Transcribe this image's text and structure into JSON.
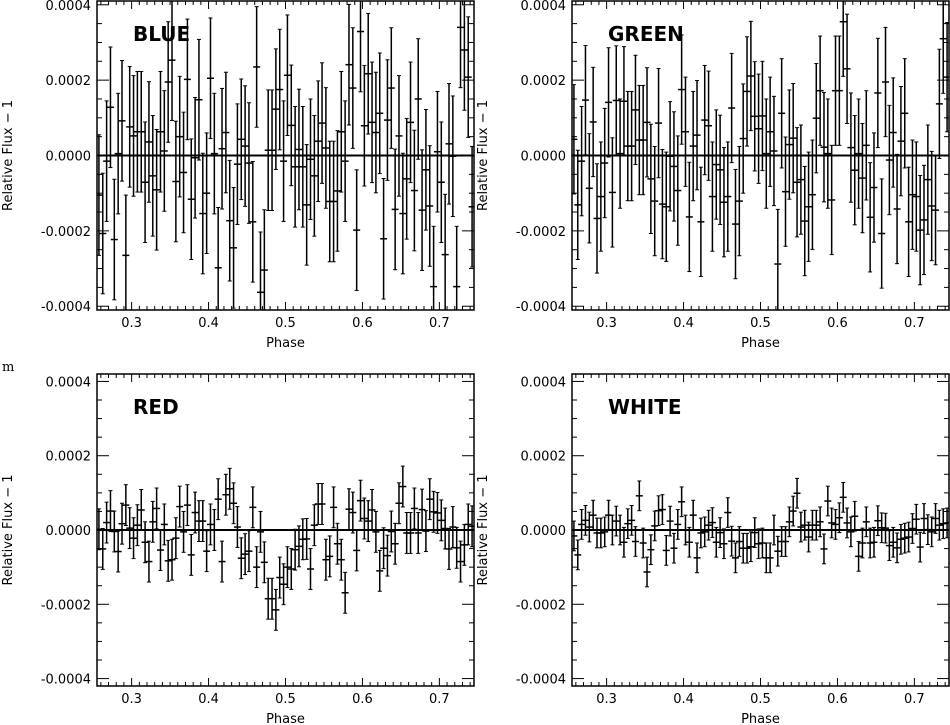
{
  "stray_text": "m",
  "chart_data": [
    {
      "type": "scatter",
      "title": "BLUE",
      "xlabel": "Phase",
      "ylabel": "Relative Flux − 1",
      "xlim": [
        0.255,
        0.745
      ],
      "ylim": [
        -0.00041,
        0.00041
      ],
      "xticks": [
        "0.3",
        "0.4",
        "0.5",
        "0.6",
        "0.7"
      ],
      "yticks": [
        "-0.0004",
        "-0.0002",
        "0.0000",
        "0.0002",
        "0.0004"
      ],
      "reference_line": 0,
      "yerr": 0.00016,
      "y": [
        -0.000105,
        -0.000207,
        -1.5e-05,
        0.000128,
        -0.000223,
        5e-06,
        9.2e-05,
        -0.000265,
        7.6e-05,
        5.2e-05,
        6.3e-05,
        6.3e-05,
        -7.1e-05,
        3.6e-05,
        -5.4e-05,
        -9.1e-05,
        6.3e-05,
        1.2e-05,
        0.000195,
        0.000253,
        -6.9e-05,
        5e-05,
        -4.5e-05,
        0.000202,
        -0.000116,
        -6e-06,
        0.000148,
        -0.000154,
        -0.0001,
        0.000205,
        5e-06,
        -0.000298,
        1.8e-05,
        6.1e-05,
        -0.000173,
        -0.000245,
        -2.3e-05,
        4.3e-05,
        2.5e-05,
        -2e-05,
        -0.000176,
        0.000235,
        -0.000363,
        -0.000304,
        1.4e-05,
        1.4e-05,
        0.000123,
        0.000175,
        -1.5e-05,
        0.000213,
        8e-05,
        -3e-05,
        1.6e-05,
        -3e-05,
        -0.000131,
        -1e-05,
        -5.4e-05,
        3.8e-05,
        8.6e-05,
        2e-05,
        -0.000122,
        -0.000122,
        -9.4e-05,
        6.3e-05,
        -1.5e-05,
        0.000241,
        0.000179,
        -0.000198,
        0.000329,
        7.9e-05,
        0.000217,
        8.8e-05,
        6.1e-05,
        0.000112,
        -0.000221,
        9.4e-05,
        0.000179,
        -0.000143,
        5.2e-05,
        -0.000154,
        -6.2e-05,
        8.8e-05,
        -9.3e-05,
        0.00015,
        -0.000145,
        -3.8e-05,
        -0.000134,
        -0.000348,
        1e-05,
        -7.1e-05,
        -0.000263,
        3.1e-05,
        -2e-06,
        -0.000348,
        0.00034,
        0.00028,
        0.000208,
        -0.000136
      ]
    },
    {
      "type": "scatter",
      "title": "GREEN",
      "xlabel": "Phase",
      "ylabel": "Relative Flux − 1",
      "xlim": [
        0.255,
        0.745
      ],
      "ylim": [
        -0.00041,
        0.00041
      ],
      "xticks": [
        "0.3",
        "0.4",
        "0.5",
        "0.6",
        "0.7"
      ],
      "yticks": [
        "-0.0004",
        "-0.0002",
        "0.0000",
        "0.0002",
        "0.0004"
      ],
      "reference_line": 0,
      "yerr": 0.000145,
      "y": [
        4.3e-05,
        -0.000131,
        -1.5e-05,
        0.000147,
        -8.7e-05,
        8.9e-05,
        -0.000167,
        -0.000109,
        -2e-05,
        0.000141,
        -9.8e-05,
        0.000146,
        5e-06,
        0.000144,
        2.5e-05,
        2.5e-05,
        0.000121,
        4.1e-05,
        4.1e-05,
        8.8e-05,
        -6.2e-05,
        -0.000121,
        8.6e-05,
        -0.000129,
        -0.000136,
        -2e-06,
        -2.9e-05,
        -9.3e-05,
        0.000175,
        6.3e-05,
        -0.000163,
        2.5e-05,
        5.4e-05,
        -0.000176,
        9.4e-05,
        7.9e-05,
        -0.000109,
        -2.4e-05,
        -3.8e-05,
        -0.000124,
        -0.000109,
        0.000126,
        -0.000182,
        -0.000121,
        4.5e-05,
        0.00017,
        0.000211,
        0.000104,
        7.1e-05,
        0.000105,
        5e-06,
        6.3e-05,
        1.2e-05,
        -0.000288,
        0.000112,
        -9.6e-05,
        2.9e-05,
        4.6e-05,
        -7.1e-05,
        -6.4e-05,
        -0.000174,
        -0.000136,
        -0.000104,
        9.9e-05,
        0.000172,
        2.2e-05,
        5e-06,
        -0.000118,
        0.000172,
        0.000172,
        0.000355,
        0.00023,
        2.1e-05,
        -3.9e-05,
        5e-06,
        -6e-05,
        2.7e-05,
        -0.000164,
        -8.5e-05,
        0.000166,
        -0.000207,
        0.000195,
        -1.2e-05,
        6.1e-05,
        -0.000142,
        3.8e-05,
        0.000112,
        -0.000176,
        -0.000104,
        -0.000109,
        -0.000198,
        -0.000171,
        -6.4e-05,
        -0.000134,
        -0.000145,
        0.000137,
        0.00031,
        0.000208
      ]
    },
    {
      "type": "scatter",
      "title": "RED",
      "xlabel": "Phase",
      "ylabel": "Relative Flux − 1",
      "xlim": [
        0.255,
        0.745
      ],
      "ylim": [
        -0.00042,
        0.00042
      ],
      "xticks": [
        "0.3",
        "0.4",
        "0.5",
        "0.6",
        "0.7"
      ],
      "yticks": [
        "-0.0004",
        "-0.0002",
        "0.0000",
        "0.0002",
        "0.0004"
      ],
      "reference_line": 0,
      "yerr": 5.5e-05,
      "y": [
        2e-06,
        -5.1e-05,
        2e-05,
        5.1e-05,
        -4e-06,
        -5.8e-05,
        1.7e-05,
        6.7e-05,
        5e-06,
        -2.2e-05,
        1.3e-05,
        5.4e-05,
        -3.3e-05,
        -8.5e-05,
        2.2e-05,
        5.8e-05,
        -5.4e-05,
        1.5e-05,
        -8.3e-05,
        -8e-05,
        -2.2e-05,
        6.3e-05,
        -5e-06,
        6.7e-05,
        -6.7e-05,
        4.7e-05,
        2.4e-05,
        2.4e-05,
        -5.7e-05,
        1.5e-05,
        0,
        8.3e-05,
        -8.5e-05,
        9.5e-05,
        0.000111,
        7.2e-05,
        8e-06,
        -7.6e-05,
        -6.5e-05,
        -5.7e-05,
        6.1e-05,
        -0.0001,
        -5e-06,
        -8.7e-05,
        -0.000185,
        -0.000185,
        -0.000215,
        -0.000128,
        -0.000146,
        -0.0001,
        -0.000105,
        -5.3e-05,
        -4.4e-05,
        -2.5e-05,
        -2.4e-05,
        -0.000105,
        1.3e-05,
        7e-05,
        7e-05,
        -8e-05,
        -7.1e-05,
        6.1e-05,
        -3.7e-05,
        -8e-05,
        -0.000169,
        5.6e-05,
        4.7e-05,
        -5.5e-05,
        7.9e-05,
        3.1e-05,
        2.4e-05,
        5.4e-05,
        -5e-06,
        -0.00011,
        -4.9e-05,
        -6.9e-05,
        -4e-06,
        -3.7e-05,
        7.2e-05,
        0.000117,
        -8e-06,
        -8e-06,
        5.8e-05,
        -8e-06,
        5.5e-05,
        -3e-06,
        8.3e-05,
        4.9e-05,
        4.6e-05,
        2.6e-05,
        4e-06,
        -5.1e-05,
        8e-06,
        -4.8e-05,
        -8.5e-05,
        -4e-05,
        1.5e-05,
        1e-05
      ]
    },
    {
      "type": "scatter",
      "title": "WHITE",
      "xlabel": "Phase",
      "ylabel": "Relative Flux − 1",
      "xlim": [
        0.255,
        0.745
      ],
      "ylim": [
        -0.00042,
        0.00042
      ],
      "xticks": [
        "0.3",
        "0.4",
        "0.5",
        "0.6",
        "0.7"
      ],
      "yticks": [
        "-0.0004",
        "-0.0002",
        "0.0000",
        "0.0002",
        "0.0004"
      ],
      "reference_line": 0,
      "yerr": 4e-05,
      "y": [
        -1.6e-05,
        -6.7e-05,
        1.5e-05,
        2.6e-05,
        8e-06,
        4e-05,
        -8e-06,
        -8e-06,
        -5e-06,
        4e-05,
        0,
        2.4e-05,
        0,
        -3.3e-05,
        1.7e-05,
        2.6e-05,
        -3.1e-05,
        9.2e-05,
        -3.5e-05,
        -0.000113,
        -5.3e-05,
        1.1e-05,
        5.2e-05,
        5.5e-05,
        -5.5e-05,
        2.4e-05,
        -4.9e-05,
        1.5e-05,
        7.6e-05,
        0,
        -3.3e-05,
        4e-05,
        -7.5e-05,
        -8e-06,
        -5e-06,
        1.3e-05,
        2e-05,
        -3.3e-05,
        -7e-06,
        -3.7e-05,
        4.7e-05,
        -3e-05,
        -7.5e-05,
        -3.1e-05,
        -4.9e-05,
        -4.9e-05,
        -4.5e-05,
        -7e-06,
        -3.7e-05,
        -3.5e-05,
        -7.5e-05,
        -7.5e-05,
        0,
        -5.7e-05,
        -3.1e-05,
        -3.1e-05,
        2.2e-05,
        5.1e-05,
        9.9e-05,
        8e-06,
        1.3e-05,
        -1.9e-05,
        1.3e-05,
        1.3e-05,
        2.2e-05,
        -5.1e-05,
        7.8e-05,
        1.9e-05,
        1.5e-05,
        3.3e-05,
        8.8e-05,
        1.9e-05,
        -5e-06,
        3.7e-05,
        -7.1e-05,
        -3.5e-05,
        2.2e-05,
        -3.5e-05,
        -3.3e-05,
        2.5e-05,
        6e-06,
        5e-06,
        -4.2e-05,
        -3.3e-05,
        -4.8e-05,
        -2.5e-05,
        -2.2e-05,
        -1.9e-05,
        4e-06,
        2.9e-05,
        -4.6e-05,
        3.1e-05,
        1e-06,
        -5e-06,
        3.1e-05,
        1.3e-05,
        1.7e-05,
        1.9e-05
      ]
    }
  ],
  "x": [
    0.2575,
    0.2625,
    0.2675,
    0.2725,
    0.2775,
    0.2825,
    0.2875,
    0.2925,
    0.2975,
    0.3025,
    0.3075,
    0.3125,
    0.3175,
    0.3225,
    0.3275,
    0.3325,
    0.3375,
    0.3425,
    0.3475,
    0.3525,
    0.3575,
    0.3625,
    0.3675,
    0.3725,
    0.3775,
    0.3825,
    0.3875,
    0.3925,
    0.3975,
    0.4025,
    0.4075,
    0.4125,
    0.4175,
    0.4225,
    0.4275,
    0.4325,
    0.4375,
    0.4425,
    0.4475,
    0.4525,
    0.4575,
    0.4625,
    0.4675,
    0.4725,
    0.4775,
    0.4825,
    0.4875,
    0.4925,
    0.4975,
    0.5025,
    0.5075,
    0.5125,
    0.5175,
    0.5225,
    0.5275,
    0.5325,
    0.5375,
    0.5425,
    0.5475,
    0.5525,
    0.5575,
    0.5625,
    0.5675,
    0.5725,
    0.5775,
    0.5825,
    0.5875,
    0.5925,
    0.5975,
    0.6025,
    0.6075,
    0.6125,
    0.6175,
    0.6225,
    0.6275,
    0.6325,
    0.6375,
    0.6425,
    0.6475,
    0.6525,
    0.6575,
    0.6625,
    0.6675,
    0.6725,
    0.6775,
    0.6825,
    0.6875,
    0.6925,
    0.6975,
    0.7025,
    0.7075,
    0.7125,
    0.7175,
    0.7225,
    0.7275,
    0.7325,
    0.7375,
    0.7425
  ]
}
